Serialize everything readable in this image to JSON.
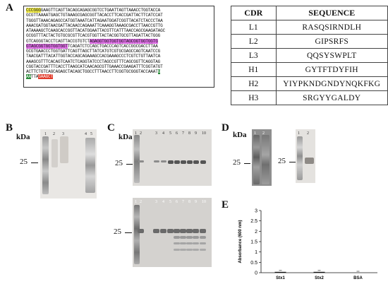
{
  "panels": {
    "a": "A",
    "b": "B",
    "c": "C",
    "d": "D",
    "e": "E"
  },
  "sequence_lines": [
    [
      [
        "CCCGGG",
        "y"
      ],
      [
        "GAAGTTCAGTTACAGCAGAGCGGTCCTGAATTAGTTAAACCTGGTACCA",
        ""
      ]
    ],
    [
      [
        "GCGTTAAAATGAGCTGTAAAGCGAGCGGTTACACCTTCACCGATTACTTCATCCAT",
        ""
      ]
    ],
    [
      [
        "TGGGTTAAACAGAGCCATGGTAAATCATTAGAATGGATCGGTTACATCTACCCTAA",
        ""
      ]
    ],
    [
      [
        "AAACGATGGTAACGATTACAACCAGAAATTCAAAGGTAAAGCGACCTTAACCGTTG",
        ""
      ]
    ],
    [
      [
        "ATAAAAGCTCAAGCACCGGTTACATGGAATTACGTTCATTTAACCAGCGAAGATAGC",
        ""
      ]
    ],
    [
      [
        "GCGGTTTACTACTGTGCGCGTTCACGTGGTTACTACGGTGCGTTAGATTACTGGG",
        ""
      ]
    ],
    [
      [
        "GTCAGGGTACCTCAGTTACCGTGTCT",
        ""
      ],
      [
        "AGAGGTGGTGGTGGTAGCGGTGGTGGTG",
        "p"
      ]
    ],
    [
      [
        "GTAGCGGTGGTGGTGGT",
        "p"
      ],
      [
        "TCAGATCTCCAGCTGACCCAGTCACCGGCGACCTTAA",
        ""
      ]
    ],
    [
      [
        "GCGTGAACCCTGGTGATTCAGTTAGCTTATCATGTCGTGCGAGCCAGTCAATCCG",
        ""
      ]
    ],
    [
      [
        "TAACGATTTACATTGGTACCAGCAGAAAGCCACGAAAGCCCTCGTCTGTTAATCA",
        ""
      ]
    ],
    [
      [
        "AAAGCGTTTCACAGTCAATCTCAGGTATCCCTAGCCGTTTCAGCGGTTCAGGTAG",
        ""
      ]
    ],
    [
      [
        "CGGTACCGATTTCACCTTAAGCATCAACAGCGTTGAAACCGAAGATTTCGGTATGT",
        ""
      ]
    ],
    [
      [
        "ACTTCTGTCAGCAGAGCTACAGCTGGCCTTTAACCTTCGGTGCGGGTACCAAAT",
        ""
      ],
      [
        "G",
        "g"
      ]
    ],
    [
      [
        "AA",
        "g"
      ],
      [
        "TTA",
        "",
        ""
      ],
      [
        "GAAGCT",
        "r"
      ]
    ]
  ],
  "cdr_table": {
    "headers": [
      "CDR",
      "SEQUENCE"
    ],
    "rows": [
      {
        "cdr": "L1",
        "seq": "RASQSIRNDLH"
      },
      {
        "cdr": "L2",
        "seq": "GIPSRFS"
      },
      {
        "cdr": "L3",
        "seq": "QQSYSWPLT"
      },
      {
        "cdr": "H1",
        "seq": "GYTFTDYFIH"
      },
      {
        "cdr": "H2",
        "seq": "YIYPKNDGNDYNQKFKG"
      },
      {
        "cdr": "H3",
        "seq": "SRGYYGALDY"
      }
    ]
  },
  "blots": {
    "kda_label": "kDa",
    "marker_25": "25",
    "b_lanes": [
      "1",
      "2",
      "3",
      "4",
      "5"
    ],
    "c_top_lanes": [
      "1",
      "2",
      "3",
      "4",
      "5",
      "6",
      "7",
      "8",
      "9",
      "10"
    ],
    "c_bottom_lanes": [
      "1",
      "2",
      "3",
      "4",
      "5",
      "6",
      "7",
      "8",
      "9",
      "10"
    ],
    "d_left_lanes": [
      "1",
      "2"
    ],
    "d_right_lanes": [
      "1",
      "2"
    ]
  },
  "chart_data": {
    "type": "bar",
    "ylabel": "Absorbance (600 nm)",
    "categories": [
      "Stx1",
      "Stx2",
      "BSA"
    ],
    "values": [
      0.04,
      0.04,
      0.0
    ],
    "ylim": [
      0,
      3
    ],
    "yticks": [
      "0",
      "0.5",
      "1",
      "1.5",
      "2",
      "2.5",
      "3"
    ],
    "bar_color": "#111111"
  }
}
